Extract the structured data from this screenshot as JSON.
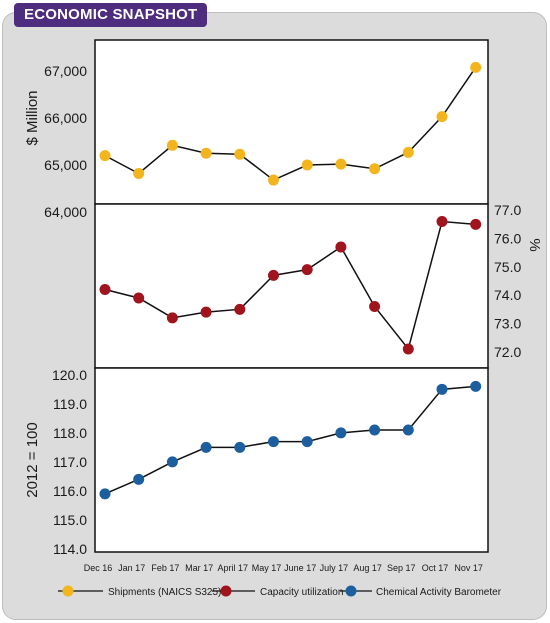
{
  "header": {
    "title": "ECONOMIC SNAPSHOT"
  },
  "colors": {
    "badge": "#4e2d7e",
    "shipments": "#f2b51d",
    "capacity": "#a0141e",
    "barometer": "#1d5f9e"
  },
  "chart_data": {
    "type": "line",
    "categories": [
      "Dec 16",
      "Jan 17",
      "Feb 17",
      "Mar 17",
      "April 17",
      "May 17",
      "June 17",
      "July 17",
      "Aug 17",
      "Sep 17",
      "Oct 17",
      "Nov 17"
    ],
    "panels": [
      {
        "key": "shipments",
        "ylabel": "$ Million",
        "ylabel_side": "left",
        "ylim": [
          64000,
          67300
        ],
        "yticks": [
          "64,000",
          "65,000",
          "66,000",
          "67,000"
        ],
        "ytick_values": [
          64000,
          65000,
          66000,
          67000
        ],
        "series_index": 0
      },
      {
        "key": "capacity",
        "ylabel": "%",
        "ylabel_side": "right",
        "ylim": [
          71.5,
          77.5
        ],
        "yticks": [
          "72.0",
          "73.0",
          "74.0",
          "75.0",
          "76.0",
          "77.0"
        ],
        "ytick_values": [
          72,
          73,
          74,
          75,
          76,
          77
        ],
        "series_index": 1
      },
      {
        "key": "barometer",
        "ylabel": "2012 = 100",
        "ylabel_side": "left",
        "ylim": [
          114,
          120.2
        ],
        "yticks": [
          "114.0",
          "115.0",
          "116.0",
          "117.0",
          "118.0",
          "119.0",
          "120.0"
        ],
        "ytick_values": [
          114,
          115,
          116,
          117,
          118,
          119,
          120
        ],
        "series_index": 2
      }
    ],
    "series": [
      {
        "name": "Shipments (NAICS S325)",
        "color": "#f2b51d",
        "values": [
          65200,
          64820,
          65420,
          65250,
          65230,
          64680,
          65000,
          65020,
          64920,
          65270,
          66030,
          67080
        ]
      },
      {
        "name": "Capacity utilization",
        "color": "#a0141e",
        "values": [
          74.2,
          73.9,
          73.2,
          73.4,
          73.5,
          74.7,
          74.9,
          75.7,
          73.6,
          72.1,
          76.6,
          76.5
        ]
      },
      {
        "name": "Chemical Activity Barometer",
        "color": "#1d5f9e",
        "values": [
          115.9,
          116.4,
          117.0,
          117.5,
          117.5,
          117.7,
          117.7,
          118.0,
          118.1,
          118.1,
          119.5,
          119.6
        ]
      }
    ],
    "grid": false,
    "legend": "bottom"
  }
}
